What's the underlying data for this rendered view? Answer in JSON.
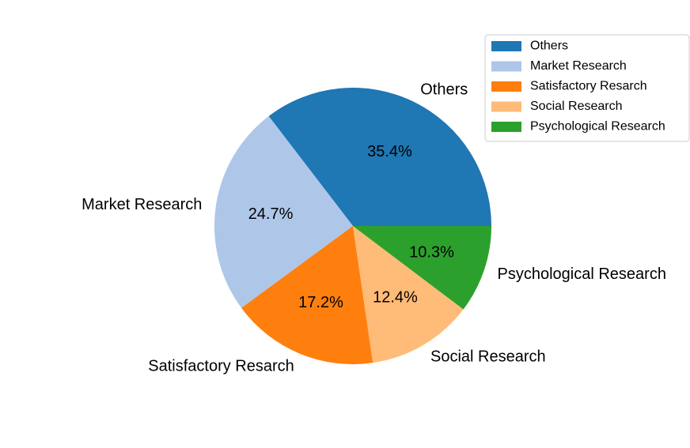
{
  "chart_data": {
    "type": "pie",
    "title": "",
    "labels": [
      "Others",
      "Market Research",
      "Satisfactory Resarch",
      "Social Research",
      "Psychological Research"
    ],
    "values": [
      35.4,
      24.7,
      17.2,
      12.4,
      10.3
    ],
    "percent_labels": [
      "35.4%",
      "24.7%",
      "17.2%",
      "12.4%",
      "10.3%"
    ],
    "colors": [
      "#1f77b4",
      "#aec7e8",
      "#ff7f0e",
      "#ffbb78",
      "#2ca02c"
    ],
    "start_angle_deg": 0,
    "direction": "counterclockwise",
    "legend": {
      "placement": "top-right",
      "entries": [
        "Others",
        "Market Research",
        "Satisfactory Resarch",
        "Social Research",
        "Psychological Research"
      ]
    }
  }
}
